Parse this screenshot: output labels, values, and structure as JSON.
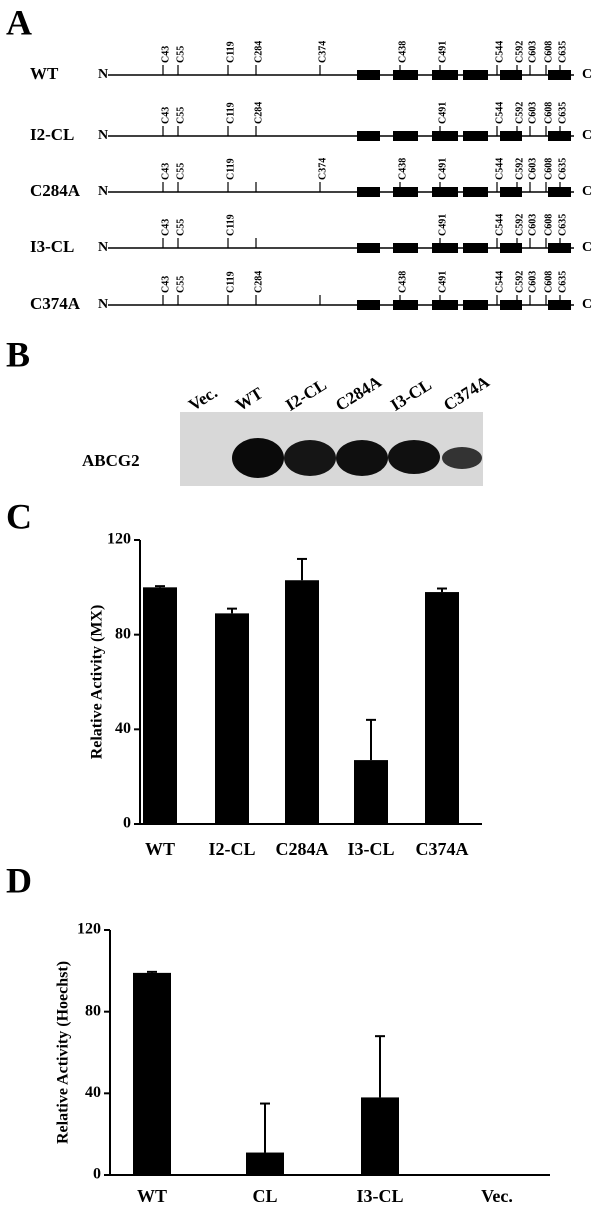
{
  "panel_labels": [
    "A",
    "B",
    "C",
    "D"
  ],
  "diagram": {
    "n_label": "N",
    "c_label": "C",
    "rows": [
      {
        "name": "WT",
        "sites": [
          "C43",
          "C55",
          "C119",
          "C284",
          "C374",
          "C438",
          "C491",
          "C544",
          "C592",
          "C603",
          "C608",
          "C635"
        ]
      },
      {
        "name": "I2-CL",
        "sites": [
          "C43",
          "C55",
          "C119",
          "C284",
          "C491",
          "C544",
          "C592",
          "C603",
          "C608",
          "C635"
        ]
      },
      {
        "name": "C284A",
        "sites": [
          "C43",
          "C55",
          "C119",
          "C374",
          "C438",
          "C491",
          "C544",
          "C592",
          "C603",
          "C608",
          "C635"
        ]
      },
      {
        "name": "I3-CL",
        "sites": [
          "C43",
          "C55",
          "C119",
          "C491",
          "C544",
          "C592",
          "C603",
          "C608",
          "C635"
        ]
      },
      {
        "name": "C374A",
        "sites": [
          "C43",
          "C55",
          "C119",
          "C284",
          "C438",
          "C491",
          "C544",
          "C592",
          "C603",
          "C608",
          "C635"
        ]
      }
    ]
  },
  "blot": {
    "lanes": [
      "Vec.",
      "WT",
      "I2-CL",
      "C284A",
      "I3-CL",
      "C374A"
    ],
    "protein": "ABCG2"
  },
  "chart_data": [
    {
      "type": "bar",
      "y_label": "Relative Activity (MX)",
      "categories": [
        "WT",
        "I2-CL",
        "C284A",
        "I3-CL",
        "C374A"
      ],
      "values": [
        100,
        89,
        103,
        27,
        98
      ],
      "errors": [
        0.5,
        2,
        9,
        17,
        1.5
      ],
      "color": "#000000",
      "ylim": [
        0,
        120
      ],
      "yticks": [
        0,
        40,
        80,
        120
      ]
    },
    {
      "type": "bar",
      "y_label": "Relative Activity (Hoechst)",
      "categories": [
        "WT",
        "CL",
        "I3-CL",
        "Vec."
      ],
      "values": [
        99,
        11,
        38,
        0
      ],
      "errors": [
        0.5,
        24,
        30,
        0
      ],
      "color": "#000000",
      "ylim": [
        0,
        120
      ],
      "yticks": [
        0,
        40,
        80,
        120
      ]
    }
  ]
}
